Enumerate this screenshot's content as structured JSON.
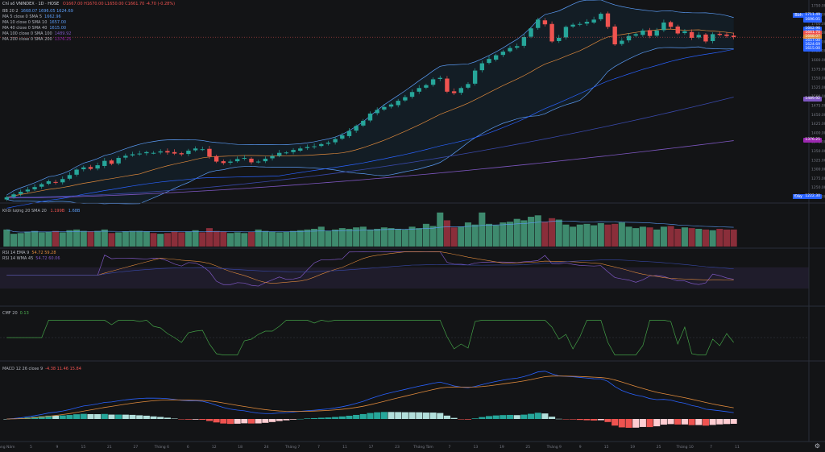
{
  "header": {
    "symbol_line": "Chỉ số VNINDEX · 1D · HOSE",
    "ohlc": "O1667.00 H1670.00 L1650.00 C1661.70 -4.70 (-0.28%)"
  },
  "legends": {
    "price": [
      {
        "label": "BB 20 2",
        "values": "1668.07 1696.05 1624.69",
        "color": "#5b9cf6"
      },
      {
        "label": "MA 5 close 0 SMA 5",
        "values": "1662.96",
        "color": "#5b9cf6"
      },
      {
        "label": "MA 10 close 0 SMA 10",
        "values": "1657.00",
        "color": "#5b9cf6"
      },
      {
        "label": "MA 40 close 0 SMA 40",
        "values": "1615.00",
        "color": "#5b9cf6"
      },
      {
        "label": "MA 100 close 0 SMA 100",
        "values": "1489.92",
        "color": "#7e57c2"
      },
      {
        "label": "MA 200 close 0 SMA 200",
        "values": "1376.25",
        "color": "#7e57c2"
      }
    ],
    "volume": {
      "label": "Khối lượng 20 SMA 20",
      "v1": "1.199B",
      "v2": "1.68B"
    },
    "rsi": [
      {
        "label": "RSI 14 EMA 9",
        "values": "54.72 59.28"
      },
      {
        "label": "RSI 14 WMA 45",
        "values": "54.72 60.06"
      }
    ],
    "cmf": {
      "label": "CMF 20",
      "values": "0.13"
    },
    "macd": {
      "label": "MACD 12 26 close 9",
      "values": "-4.38 11.46 15.84"
    }
  },
  "axis": {
    "price_ticks": [
      "1750.00",
      "1725.00",
      "1700.00",
      "1675.00",
      "1650.00",
      "1625.00",
      "1600.00",
      "1575.00",
      "1550.00",
      "1525.00",
      "1500.00",
      "1475.00",
      "1450.00",
      "1425.00",
      "1400.00",
      "1375.00",
      "1350.00",
      "1325.00",
      "1300.00",
      "1275.00",
      "1250.00",
      "1225.00"
    ],
    "time_labels": [
      "tháng Năm",
      "5",
      "9",
      "15",
      "21",
      "27",
      "Tháng 6",
      "6",
      "12",
      "18",
      "24",
      "Tháng 7",
      "7",
      "11",
      "17",
      "23",
      "Tháng Tám",
      "7",
      "13",
      "19",
      "25",
      "Tháng 9",
      "9",
      "15",
      "19",
      "25",
      "Tháng 10",
      "7",
      "11"
    ],
    "corner_icon": "gear-icon"
  },
  "price_labels": [
    {
      "text": "1711.49",
      "color": "#2962ff",
      "tag": "Bbh"
    },
    {
      "text": "1696.05",
      "color": "#2962ff"
    },
    {
      "text": "1662.96",
      "color": "#2962ff"
    },
    {
      "text": "1661.70",
      "color": "#ef5350"
    },
    {
      "text": "1668.07",
      "color": "#e08a3c"
    },
    {
      "text": "1657.00",
      "color": "#2962ff"
    },
    {
      "text": "1624.69",
      "color": "#2962ff"
    },
    {
      "text": "1615.00",
      "color": "#2962ff"
    },
    {
      "text": "1489.92",
      "color": "#7e57c2"
    },
    {
      "text": "1376.25",
      "color": "#9c27b0"
    },
    {
      "text": "1222.30",
      "color": "#2962ff",
      "tag": "Đáy"
    }
  ],
  "chart_data": {
    "type": "candlestick",
    "title": "Chỉ số VNINDEX · 1D · HOSE",
    "ylim": [
      1215,
      1755
    ],
    "close": [
      1222,
      1230,
      1237,
      1243,
      1250,
      1258,
      1266,
      1262,
      1272,
      1283,
      1298,
      1304,
      1300,
      1310,
      1322,
      1314,
      1330,
      1336,
      1340,
      1342,
      1346,
      1344,
      1348,
      1345,
      1342,
      1340,
      1350,
      1356,
      1354,
      1334,
      1320,
      1316,
      1320,
      1327,
      1330,
      1318,
      1320,
      1328,
      1335,
      1344,
      1345,
      1352,
      1356,
      1360,
      1362,
      1368,
      1372,
      1382,
      1392,
      1404,
      1418,
      1432,
      1452,
      1462,
      1470,
      1477,
      1487,
      1497,
      1511,
      1522,
      1530,
      1546,
      1550,
      1512,
      1508,
      1522,
      1533,
      1570,
      1590,
      1602,
      1612,
      1622,
      1632,
      1637,
      1662,
      1686,
      1710,
      1697,
      1650,
      1660,
      1690,
      1696,
      1698,
      1704,
      1710,
      1726,
      1690,
      1642,
      1652,
      1665,
      1670,
      1680,
      1665,
      1680,
      1702,
      1690,
      1672,
      1678,
      1660,
      1668,
      1650,
      1670,
      1668,
      1665,
      1662
    ],
    "volume": [
      1.2,
      0.9,
      0.95,
      1.05,
      1.1,
      1.0,
      1.05,
      1.1,
      1.0,
      1.15,
      1.2,
      1.1,
      1.05,
      1.1,
      1.2,
      0.95,
      1.0,
      1.05,
      1.1,
      1.1,
      1.05,
      0.95,
      0.9,
      0.95,
      1.05,
      1.0,
      1.05,
      1.15,
      1.0,
      1.3,
      1.1,
      1.05,
      0.95,
      1.0,
      0.95,
      1.05,
      1.2,
      1.1,
      1.05,
      1.0,
      1.05,
      1.1,
      1.15,
      1.2,
      1.25,
      1.4,
      1.1,
      1.2,
      1.3,
      1.25,
      1.35,
      1.4,
      1.2,
      1.25,
      1.35,
      1.3,
      1.25,
      1.2,
      1.4,
      1.3,
      1.6,
      1.45,
      2.4,
      1.85,
      1.35,
      1.4,
      1.7,
      1.55,
      2.4,
      1.6,
      1.5,
      1.7,
      1.75,
      1.95,
      1.85,
      2.1,
      2.2,
      1.75,
      2.0,
      1.9,
      1.55,
      1.4,
      1.55,
      1.6,
      1.5,
      1.65,
      1.55,
      1.6,
      1.7,
      1.4,
      1.3,
      1.4,
      1.35,
      1.2,
      1.4,
      1.45,
      1.25,
      1.35,
      1.3,
      1.25,
      1.2,
      1.15,
      1.25,
      1.2,
      1.2
    ],
    "rsi_range": [
      0,
      100
    ],
    "cmf_value": 0.13,
    "macd_values": {
      "macd": 11.46,
      "signal": 15.84,
      "histogram": -4.38
    }
  }
}
